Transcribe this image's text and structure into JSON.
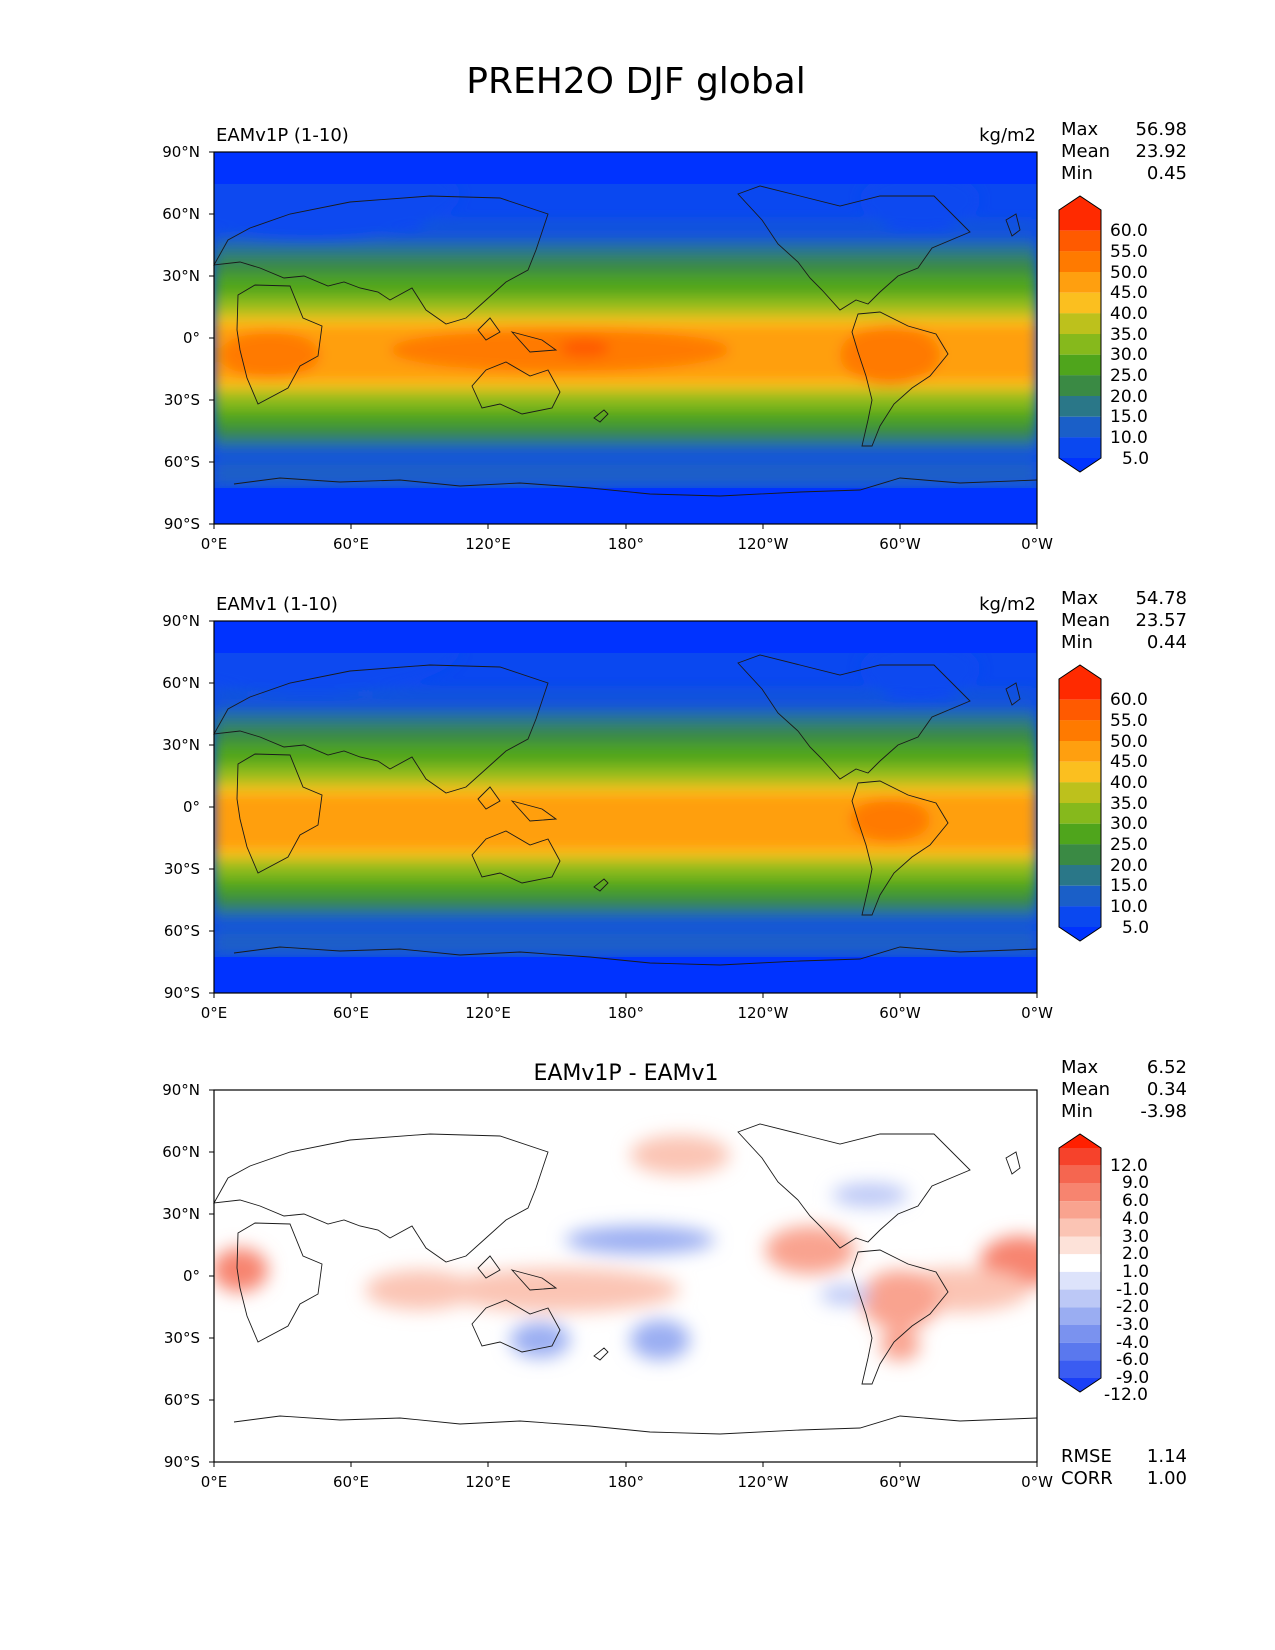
{
  "figure": {
    "title": "PREH2O DJF global"
  },
  "chart_data": [
    {
      "type": "heatmap",
      "title": "EAMv1P (1-10)",
      "units": "kg/m2",
      "stats": [
        {
          "label": "Max",
          "value": "56.98"
        },
        {
          "label": "Mean",
          "value": "23.92"
        },
        {
          "label": "Min",
          "value": "0.45"
        }
      ],
      "x_ticks": [
        "0°E",
        "60°E",
        "120°E",
        "180°",
        "120°W",
        "60°W",
        "0°W"
      ],
      "y_ticks": [
        "90°N",
        "60°N",
        "30°N",
        "0°",
        "30°S",
        "60°S",
        "90°S"
      ],
      "xlim": [
        0,
        360
      ],
      "ylim": [
        -90,
        90
      ],
      "colorbar": {
        "labels": [
          "60.0",
          "55.0",
          "50.0",
          "45.0",
          "40.0",
          "35.0",
          "30.0",
          "25.0",
          "20.0",
          "15.0",
          "10.0",
          "5.0"
        ],
        "colors": [
          "#ff2a00",
          "#ff5a00",
          "#ff7a00",
          "#ff9f0f",
          "#fbbf1f",
          "#bdc11c",
          "#86b91c",
          "#4fa51c",
          "#3a8a44",
          "#2a7788",
          "#1a5fc8",
          "#0a48f0",
          "#0033ff"
        ]
      }
    },
    {
      "type": "heatmap",
      "title": "EAMv1 (1-10)",
      "units": "kg/m2",
      "stats": [
        {
          "label": "Max",
          "value": "54.78"
        },
        {
          "label": "Mean",
          "value": "23.57"
        },
        {
          "label": "Min",
          "value": "0.44"
        }
      ],
      "x_ticks": [
        "0°E",
        "60°E",
        "120°E",
        "180°",
        "120°W",
        "60°W",
        "0°W"
      ],
      "y_ticks": [
        "90°N",
        "60°N",
        "30°N",
        "0°",
        "30°S",
        "60°S",
        "90°S"
      ],
      "xlim": [
        0,
        360
      ],
      "ylim": [
        -90,
        90
      ],
      "colorbar": {
        "labels": [
          "60.0",
          "55.0",
          "50.0",
          "45.0",
          "40.0",
          "35.0",
          "30.0",
          "25.0",
          "20.0",
          "15.0",
          "10.0",
          "5.0"
        ],
        "colors": [
          "#ff2a00",
          "#ff5a00",
          "#ff7a00",
          "#ff9f0f",
          "#fbbf1f",
          "#bdc11c",
          "#86b91c",
          "#4fa51c",
          "#3a8a44",
          "#2a7788",
          "#1a5fc8",
          "#0a48f0",
          "#0033ff"
        ]
      }
    },
    {
      "type": "heatmap",
      "title": "EAMv1P - EAMv1",
      "units": "",
      "stats": [
        {
          "label": "Max",
          "value": "6.52"
        },
        {
          "label": "Mean",
          "value": "0.34"
        },
        {
          "label": "Min",
          "value": "-3.98"
        }
      ],
      "extra_stats": [
        {
          "label": "RMSE",
          "value": "1.14"
        },
        {
          "label": "CORR",
          "value": "1.00"
        }
      ],
      "x_ticks": [
        "0°E",
        "60°E",
        "120°E",
        "180°",
        "120°W",
        "60°W",
        "0°W"
      ],
      "y_ticks": [
        "90°N",
        "60°N",
        "30°N",
        "0°",
        "30°S",
        "60°S",
        "90°S"
      ],
      "xlim": [
        0,
        360
      ],
      "ylim": [
        -90,
        90
      ],
      "colorbar": {
        "labels": [
          "12.0",
          "9.0",
          "6.0",
          "4.0",
          "3.0",
          "2.0",
          "1.0",
          "-1.0",
          "-2.0",
          "-3.0",
          "-4.0",
          "-6.0",
          "-9.0",
          "-12.0"
        ],
        "colors": [
          "#ff2000",
          "#f6422b",
          "#f56650",
          "#f7846f",
          "#f9a38f",
          "#fbc4b4",
          "#fde2d9",
          "#ffffff",
          "#dde3fb",
          "#bcc8f6",
          "#9aadf2",
          "#7a92ef",
          "#5a78ee",
          "#3a5cf2",
          "#1a3ff7"
        ]
      }
    }
  ]
}
